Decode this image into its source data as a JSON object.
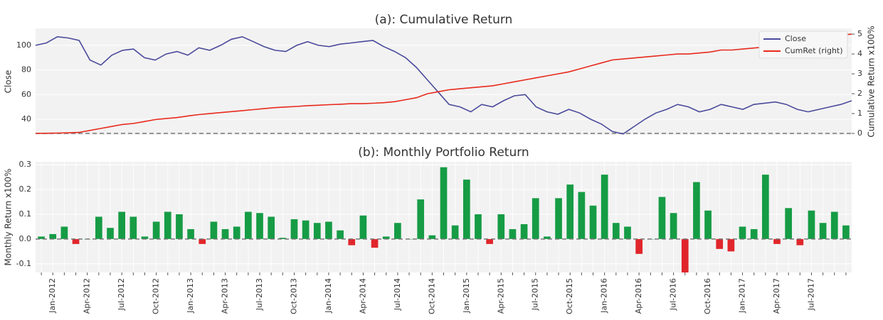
{
  "chart_data": [
    {
      "type": "line",
      "title": "(a):  Cumulative Return",
      "ylabel": "Close",
      "y2label": "Cumulative Return x100%",
      "ylim": [
        27.3,
        113.8
      ],
      "yticks": [
        40,
        60,
        80,
        100
      ],
      "y2lim": [
        -0.07,
        5.29
      ],
      "y2ticks": [
        0,
        1,
        2,
        3,
        4,
        5
      ],
      "y2_reference_line": 0,
      "grid": true,
      "legend": "upper right",
      "series": [
        {
          "name": "Close",
          "color": "#4a4a9c",
          "values": [
            100,
            102,
            107,
            106,
            104,
            88,
            84,
            92,
            96,
            97,
            90,
            88,
            93,
            95,
            92,
            98,
            96,
            100,
            105,
            107,
            103,
            99,
            96,
            95,
            100,
            103,
            100,
            99,
            101,
            102,
            103,
            104,
            99,
            95,
            90,
            82,
            72,
            62,
            52,
            50,
            46,
            52,
            50,
            55,
            59,
            60,
            50,
            46,
            44,
            48,
            45,
            40,
            36,
            30,
            28,
            34,
            40,
            45,
            48,
            52,
            50,
            46,
            48,
            52,
            50,
            48,
            52,
            53,
            54,
            52,
            48,
            46,
            48,
            50,
            52,
            55
          ]
        },
        {
          "name": "CumRet (right)",
          "color": "#e8291c",
          "axis": "y2",
          "values": [
            0,
            0.01,
            0.02,
            0.03,
            0.05,
            0.15,
            0.25,
            0.35,
            0.45,
            0.5,
            0.6,
            0.7,
            0.75,
            0.8,
            0.88,
            0.95,
            1.0,
            1.05,
            1.1,
            1.15,
            1.2,
            1.25,
            1.3,
            1.33,
            1.36,
            1.4,
            1.42,
            1.45,
            1.47,
            1.5,
            1.5,
            1.52,
            1.55,
            1.6,
            1.7,
            1.8,
            2.0,
            2.1,
            2.2,
            2.25,
            2.3,
            2.35,
            2.4,
            2.5,
            2.6,
            2.7,
            2.8,
            2.9,
            3.0,
            3.1,
            3.25,
            3.4,
            3.55,
            3.7,
            3.75,
            3.8,
            3.85,
            3.9,
            3.95,
            4.0,
            4.0,
            4.05,
            4.1,
            4.2,
            4.2,
            4.25,
            4.3,
            4.35,
            4.45,
            4.55,
            4.65,
            4.7,
            4.8,
            4.9,
            4.95,
            5.0
          ]
        }
      ]
    },
    {
      "type": "bar",
      "title": "(b):  Monthly Portfolio Return",
      "ylabel": "Monthly Return x100%",
      "ylim": [
        -0.135,
        0.312
      ],
      "yticks": [
        -0.1,
        {
          "value": 0,
          "label": "0.0"
        },
        0.1,
        0.2,
        0.3
      ],
      "reference_line": 0,
      "grid": true,
      "positive_color": "#169c45",
      "negative_color": "#e0262b",
      "categories": [
        null,
        "Jan-2012",
        null,
        null,
        "Apr-2012",
        null,
        null,
        "Jul-2012",
        null,
        null,
        "Oct-2012",
        null,
        null,
        "Jan-2013",
        null,
        null,
        "Apr-2013",
        null,
        null,
        "Jul-2013",
        null,
        null,
        "Oct-2013",
        null,
        null,
        "Jan-2014",
        null,
        null,
        "Apr-2014",
        null,
        null,
        "Jul-2014",
        null,
        null,
        "Oct-2014",
        null,
        null,
        "Jan-2015",
        null,
        null,
        "Apr-2015",
        null,
        null,
        "Jul-2015",
        null,
        null,
        "Oct-2015",
        null,
        null,
        "Jan-2016",
        null,
        null,
        "Apr-2016",
        null,
        null,
        "Jul-2016",
        null,
        null,
        "Oct-2016",
        null,
        null,
        "Jan-2017",
        null,
        null,
        "Apr-2017",
        null,
        null,
        "Jul-2017",
        null,
        null,
        null
      ],
      "values": [
        0.01,
        0.02,
        0.05,
        -0.02,
        0,
        0.09,
        0.045,
        0.11,
        0.09,
        0.01,
        0.07,
        0.11,
        0.1,
        0.04,
        -0.02,
        0.07,
        0.04,
        0.05,
        0.11,
        0.105,
        0.09,
        0.005,
        0.08,
        0.075,
        0.065,
        0.07,
        0.035,
        -0.025,
        0.095,
        -0.035,
        0.01,
        0.065,
        0,
        0.16,
        0.015,
        0.29,
        0.055,
        0.24,
        0.1,
        -0.02,
        0.1,
        0.04,
        0.06,
        0.165,
        0.01,
        0.165,
        0.22,
        0.19,
        0.135,
        0.26,
        0.065,
        0.05,
        -0.06,
        0,
        0.17,
        0.105,
        -0.135,
        0.23,
        0.115,
        -0.04,
        -0.05,
        0.05,
        0.04,
        0.26,
        -0.02,
        0.125,
        -0.025,
        0.115,
        0.065,
        0.11,
        0.055
      ]
    }
  ]
}
